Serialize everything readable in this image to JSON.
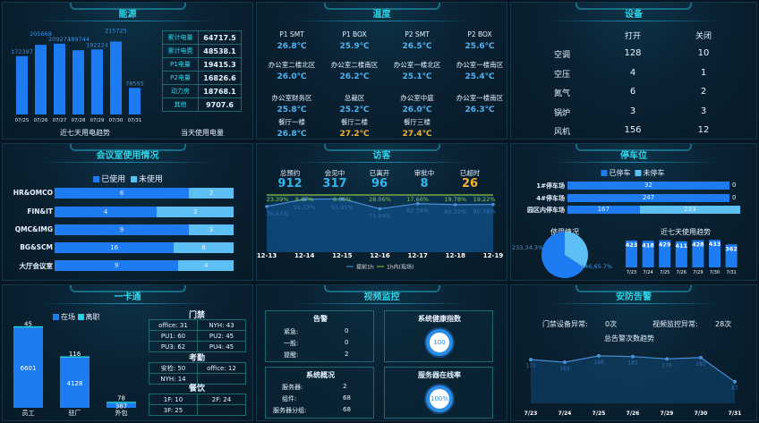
{
  "energy": {
    "title": "能源",
    "chart_caption": "近七天用电趋势",
    "table_caption": "当天使用电量",
    "days": [
      "07/25",
      "07/26",
      "07/27",
      "07/28",
      "07/29",
      "07/30",
      "07/31"
    ],
    "values": [
      172397,
      205668,
      209273,
      189744,
      192224,
      215725,
      78565
    ],
    "table": [
      {
        "label": "累计电量",
        "value": "64717.5"
      },
      {
        "label": "累计电费",
        "value": "48538.1"
      },
      {
        "label": "P1电量",
        "value": "19415.3"
      },
      {
        "label": "P2电量",
        "value": "16826.6"
      },
      {
        "label": "动力房",
        "value": "18768.1"
      },
      {
        "label": "其他",
        "value": "9707.6"
      }
    ]
  },
  "temperature": {
    "title": "温度",
    "items": [
      {
        "name": "P1 SMT",
        "value": "26.8℃"
      },
      {
        "name": "P1 BOX",
        "value": "25.9℃"
      },
      {
        "name": "P2 SMT",
        "value": "26.5℃"
      },
      {
        "name": "P2 BOX",
        "value": "25.6℃"
      },
      {
        "name": "办公室二楼北区",
        "value": "26.0℃"
      },
      {
        "name": "办公室二楼南区",
        "value": "26.2℃"
      },
      {
        "name": "办公室一楼北区",
        "value": "25.1℃"
      },
      {
        "name": "办公室一楼南区",
        "value": "25.4℃"
      },
      {
        "name": "办公室财务区",
        "value": "25.8℃"
      },
      {
        "name": "总裁区",
        "value": "25.2℃"
      },
      {
        "name": "办公室中庭",
        "value": "26.0℃"
      },
      {
        "name": "办公室一楼南区",
        "value": "26.3℃"
      },
      {
        "name": "餐厅一楼",
        "value": "26.8℃"
      },
      {
        "name": "餐厅二楼",
        "value": "27.2℃",
        "warn": true
      },
      {
        "name": "餐厅三楼",
        "value": "27.4℃",
        "warn": true
      }
    ]
  },
  "equipment": {
    "title": "设备",
    "col_open": "打开",
    "col_close": "关闭",
    "rows": [
      {
        "name": "空调",
        "open": "128",
        "close": "10"
      },
      {
        "name": "空压",
        "open": "4",
        "close": "1"
      },
      {
        "name": "氮气",
        "open": "6",
        "close": "2"
      },
      {
        "name": "锅炉",
        "open": "3",
        "close": "3"
      },
      {
        "name": "风机",
        "open": "156",
        "close": "12"
      }
    ]
  },
  "meeting": {
    "title": "会议室使用情况",
    "legend_used": "已使用",
    "legend_unused": "未使用",
    "rows": [
      {
        "name": "HR&OMCO",
        "used": 6,
        "unused": 2
      },
      {
        "name": "FIN&IT",
        "used": 4,
        "unused": 3
      },
      {
        "name": "QMC&IMG",
        "used": 9,
        "unused": 3
      },
      {
        "name": "BG&SCM",
        "used": 16,
        "unused": 8
      },
      {
        "name": "大厅会议室",
        "used": 9,
        "unused": 4
      }
    ]
  },
  "visitor": {
    "title": "访客",
    "stats": [
      {
        "label": "总预约",
        "value": "912"
      },
      {
        "label": "会见中",
        "value": "317"
      },
      {
        "label": "已离开",
        "value": "96"
      },
      {
        "label": "审批中",
        "value": "8"
      },
      {
        "label": "已超时",
        "value": "26",
        "warn": true
      }
    ],
    "chart_data": {
      "type": "line",
      "x": [
        "12-13",
        "12-14",
        "12-15",
        "12-16",
        "12-17",
        "12-18",
        "12-19"
      ],
      "series": [
        {
          "name": "提前1h",
          "values": [
            76.61,
            91.33,
            91.91,
            71.94,
            82.34,
            80.22,
            80.78
          ],
          "color": "#2f7fd8"
        },
        {
          "name": "1h内(现场)",
          "values": [
            23.39,
            8.67,
            8.09,
            28.06,
            17.66,
            19.78,
            19.22
          ],
          "color": "#8ec63f"
        }
      ],
      "stacked": true,
      "unit": "%"
    }
  },
  "parking": {
    "title": "停车位",
    "legend_parked": "已停车",
    "legend_free": "未停车",
    "lots": [
      {
        "name": "1#停车场",
        "parked": 32,
        "free": 0
      },
      {
        "name": "4#停车场",
        "parked": 247,
        "free": 0
      },
      {
        "name": "园区内停车场",
        "parked": 167,
        "free": 233
      }
    ],
    "pie_title": "使用情况",
    "pie": [
      {
        "label": "233,34.3%",
        "value": 233
      },
      {
        "label": "446,65.7%",
        "value": 446
      }
    ],
    "trend_title": "近七天使用趋势",
    "trend_days": [
      "7/23",
      "7/24",
      "7/25",
      "7/26",
      "7/29",
      "7/30",
      "7/31"
    ],
    "trend_values": [
      423,
      418,
      429,
      411,
      428,
      433,
      362
    ]
  },
  "card": {
    "title": "一卡通",
    "legend_on": "在场",
    "legend_left": "离职",
    "bars": [
      {
        "name": "员工",
        "on": 6601,
        "left": 45
      },
      {
        "name": "驻厂",
        "on": 4128,
        "left": 116
      },
      {
        "name": "外包",
        "on": 387,
        "left": 78
      }
    ],
    "access_title": "门禁",
    "access": [
      "office: 31",
      "NYH: 43",
      "PU1: 60",
      "PU2: 45",
      "PU3: 62",
      "PU4: 45"
    ],
    "attend_title": "考勤",
    "attend": [
      "安检: 50",
      "office: 12",
      "NYH: 14",
      ""
    ],
    "dining_title": "餐饮",
    "dining": [
      "1F: 10",
      "2F: 24",
      "3F: 25",
      ""
    ]
  },
  "video": {
    "title": "视频监控",
    "alarm_title": "告警",
    "alarms": [
      {
        "label": "紧急:",
        "value": "0"
      },
      {
        "label": "一般:",
        "value": "0"
      },
      {
        "label": "提醒:",
        "value": "2"
      }
    ],
    "health_title": "系统健康指数",
    "health": "100",
    "overview_title": "系统概况",
    "overview": [
      {
        "label": "服务器:",
        "value": "2"
      },
      {
        "label": "组件:",
        "value": "68"
      },
      {
        "label": "服务器分组:",
        "value": "68"
      }
    ],
    "online_title": "服务器在线率",
    "online": "100%"
  },
  "security": {
    "title": "安防告警",
    "door_label": "门禁设备异常:",
    "door_value": "0次",
    "video_label": "视频监控异常:",
    "video_value": "28次",
    "chart_title": "总告警次数趋势",
    "days": [
      "7/23",
      "7/24",
      "7/25",
      "7/26",
      "7/29",
      "7/30",
      "7/31"
    ],
    "values": [
      173,
      163,
      188,
      185,
      176,
      181,
      87
    ]
  }
}
